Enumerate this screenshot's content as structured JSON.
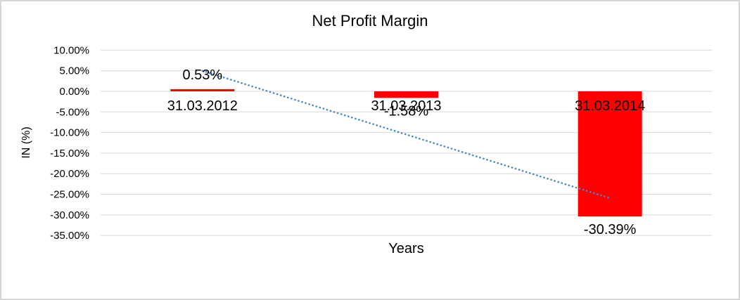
{
  "chart_data": {
    "type": "bar",
    "title": "Net Profit Margin",
    "xlabel": "Years",
    "ylabel": "IN (%)",
    "categories": [
      "31.03.2012",
      "31.03.2013",
      "31.03.2014"
    ],
    "values": [
      0.53,
      -1.58,
      -30.39
    ],
    "data_labels": [
      "0.53%",
      "-1.58%",
      "-30.39%"
    ],
    "unit": "percent",
    "ylim": [
      -35,
      10
    ],
    "y_tick_step": 5,
    "y_tick_labels": [
      "10.00%",
      "5.00%",
      "0.00%",
      "-5.00%",
      "-10.00%",
      "-15.00%",
      "-20.00%",
      "-25.00%",
      "-30.00%",
      "-35.00%"
    ],
    "grid": true,
    "legend": false,
    "bar_color": "#FF0000",
    "gridline_color": "#D9D9D9",
    "trendline": {
      "type": "linear_regression",
      "style": "dotted",
      "color": "#4A86C8",
      "endpoint_values": [
        4.98,
        -25.94
      ]
    }
  }
}
